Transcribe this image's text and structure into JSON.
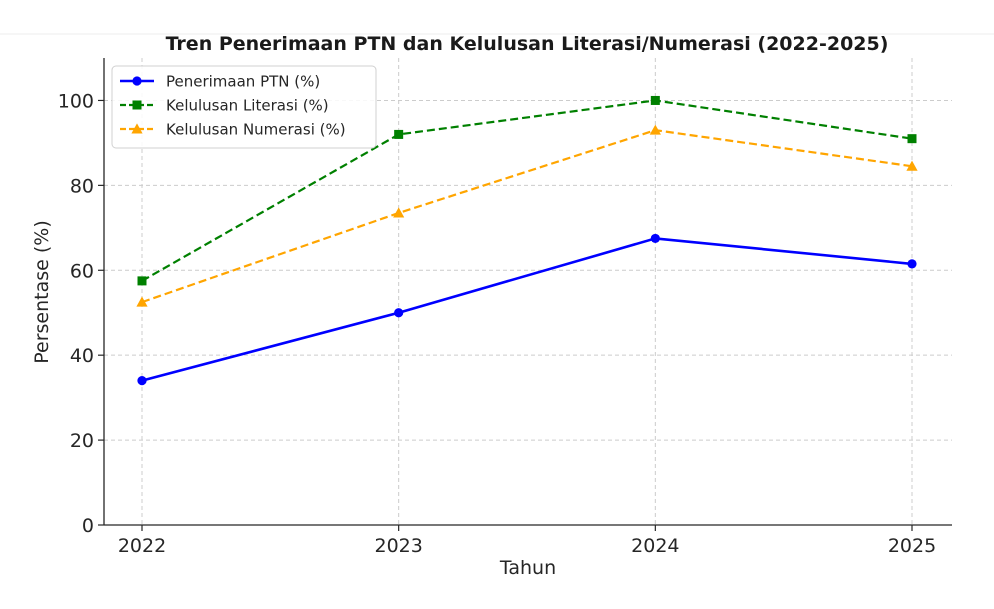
{
  "chart_data": {
    "type": "line",
    "title": "Tren Penerimaan PTN dan Kelulusan Literasi/Numerasi (2022-2025)",
    "xlabel": "Tahun",
    "ylabel": "Persentase (%)",
    "x": [
      "2022",
      "2023",
      "2024",
      "2025"
    ],
    "ylim": [
      0,
      110
    ],
    "yticks": [
      0,
      20,
      40,
      60,
      80,
      100
    ],
    "grid": true,
    "legend_position": "top-left",
    "series": [
      {
        "name": "Penerimaan PTN (%)",
        "values": [
          34,
          50,
          67.5,
          61.5
        ],
        "color": "#0000ff",
        "marker": "circle",
        "line_style": "solid"
      },
      {
        "name": "Kelulusan Literasi (%)",
        "values": [
          57.5,
          92,
          100,
          91
        ],
        "color": "#008000",
        "marker": "square",
        "line_style": "dashed"
      },
      {
        "name": "Kelulusan Numerasi (%)",
        "values": [
          52.5,
          73.5,
          93,
          84.5
        ],
        "color": "#ffa500",
        "marker": "triangle",
        "line_style": "dashed"
      }
    ]
  }
}
